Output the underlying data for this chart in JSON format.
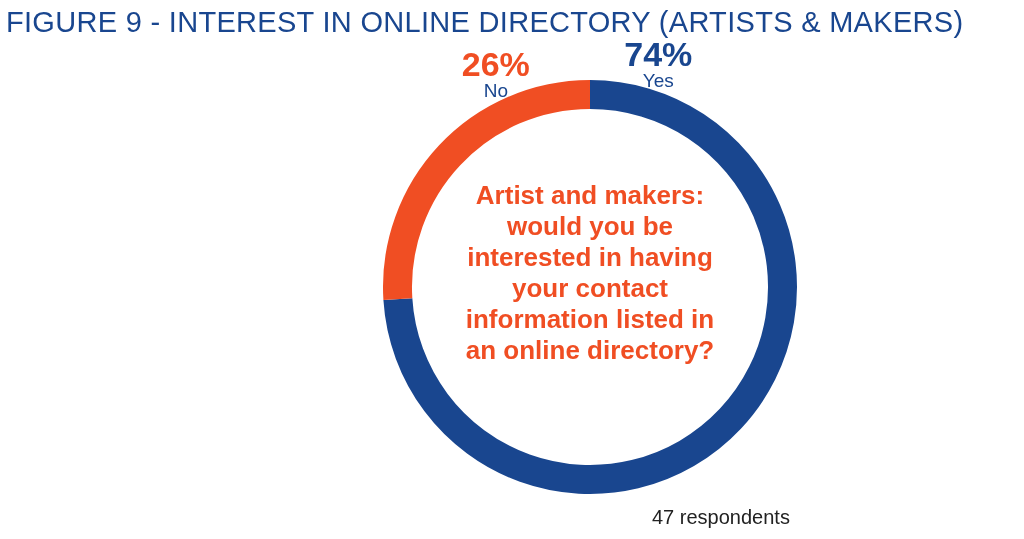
{
  "chart_data": {
    "type": "donut",
    "title": "FIGURE 9 - INTEREST IN ONLINE DIRECTORY (ARTISTS & MAKERS)",
    "categories": [
      "Yes",
      "No"
    ],
    "values": [
      74,
      26
    ],
    "value_labels": [
      "74%",
      "26%"
    ],
    "colors": [
      "#19468f",
      "#f04e23"
    ],
    "legend": false,
    "annotations": [
      "Artist and makers: would you be interested in having your contact information listed in an online directory?",
      "47 respondents"
    ]
  }
}
